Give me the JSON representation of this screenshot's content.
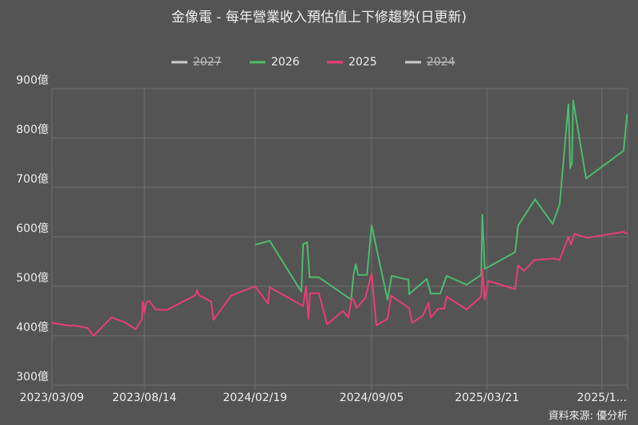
{
  "chart_data": {
    "type": "line",
    "title": "金像電 - 每年營業收入預估值上下修趨勢(日更新)",
    "source": "資料來源: 優分析",
    "grid": true,
    "legend_position": "top",
    "ylim": [
      300,
      900
    ],
    "yticks": [
      {
        "value": 300,
        "label": "300億"
      },
      {
        "value": 400,
        "label": "400億"
      },
      {
        "value": 500,
        "label": "500億"
      },
      {
        "value": 600,
        "label": "600億"
      },
      {
        "value": 700,
        "label": "700億"
      },
      {
        "value": 800,
        "label": "800億"
      },
      {
        "value": 900,
        "label": "900億"
      }
    ],
    "xlim": [
      "2023/03/09",
      "2025/11/16"
    ],
    "xticks": [
      "2023/03/09",
      "2023/08/14",
      "2024/02/19",
      "2024/09/05",
      "2025/03/21",
      {
        "value": "2025/10/03",
        "label": "2025/1..."
      }
    ],
    "series": [
      {
        "name": "2027",
        "color": "#cccccc",
        "hidden": true
      },
      {
        "name": "2026",
        "color": "#4cbb6c",
        "x": [
          "2024/02/19",
          "2024/03/15",
          "2024/05/08",
          "2024/05/11",
          "2024/05/18",
          "2024/05/22",
          "2024/06/07",
          "2024/08/01",
          "2024/08/05",
          "2024/08/09",
          "2024/08/13",
          "2024/08/28",
          "2024/09/05",
          "2024/10/02",
          "2024/10/09",
          "2024/11/07",
          "2024/11/08",
          "2024/12/08",
          "2024/12/15",
          "2024/12/31",
          "2025/01/11",
          "2025/02/14",
          "2025/03/11",
          "2025/03/13",
          "2025/03/17",
          "2025/05/08",
          "2025/05/13",
          "2025/06/11",
          "2025/07/11",
          "2025/07/23",
          "2025/08/07",
          "2025/08/10",
          "2025/08/13",
          "2025/08/15",
          "2025/09/06",
          "2025/11/09",
          "2025/11/15"
        ],
        "values": [
          584,
          592,
          489,
          585,
          589,
          518,
          518,
          473,
          523,
          545,
          523,
          523,
          623,
          473,
          521,
          513,
          484,
          515,
          485,
          485,
          521,
          503,
          523,
          645,
          535,
          569,
          623,
          676,
          626,
          666,
          868,
          739,
          749,
          876,
          718,
          774,
          848
        ]
      },
      {
        "name": "2025",
        "color": "#e83e76",
        "x": [
          "2023/03/09",
          "2023/04/09",
          "2023/04/15",
          "2023/05/09",
          "2023/05/19",
          "2023/05/26",
          "2023/06/19",
          "2023/07/12",
          "2023/07/30",
          "2023/08/10",
          "2023/08/11",
          "2023/08/14",
          "2023/08/17",
          "2023/08/22",
          "2023/09/02",
          "2023/09/21",
          "2023/11/09",
          "2023/11/12",
          "2023/11/15",
          "2023/12/06",
          "2023/12/10",
          "2024/01/09",
          "2024/02/19",
          "2024/03/12",
          "2024/03/15",
          "2024/05/11",
          "2024/05/16",
          "2024/05/20",
          "2024/05/23",
          "2024/06/07",
          "2024/06/21",
          "2024/07/18",
          "2024/07/27",
          "2024/08/02",
          "2024/08/06",
          "2024/08/10",
          "2024/08/25",
          "2024/09/05",
          "2024/09/13",
          "2024/10/02",
          "2024/10/08",
          "2024/11/08",
          "2024/11/13",
          "2024/12/01",
          "2024/12/11",
          "2024/12/15",
          "2024/12/28",
          "2025/01/07",
          "2025/01/11",
          "2025/02/14",
          "2025/03/11",
          "2025/03/13",
          "2025/03/17",
          "2025/03/23",
          "2025/05/08",
          "2025/05/13",
          "2025/05/23",
          "2025/06/10",
          "2025/07/14",
          "2025/07/23",
          "2025/08/07",
          "2025/08/11",
          "2025/08/17",
          "2025/09/08",
          "2025/11/09",
          "2025/11/16"
        ],
        "values": [
          426,
          420,
          421,
          416,
          400,
          408,
          437,
          427,
          413,
          434,
          469,
          447,
          466,
          471,
          453,
          452,
          482,
          492,
          482,
          469,
          432,
          481,
          500,
          465,
          498,
          460,
          500,
          434,
          486,
          486,
          423,
          450,
          437,
          476,
          471,
          456,
          476,
          526,
          421,
          434,
          481,
          456,
          426,
          440,
          466,
          437,
          455,
          455,
          479,
          453,
          479,
          535,
          473,
          511,
          494,
          542,
          531,
          553,
          556,
          553,
          600,
          584,
          606,
          598,
          610,
          606
        ]
      },
      {
        "name": "2024",
        "color": "#cccccc",
        "hidden": true
      }
    ]
  }
}
